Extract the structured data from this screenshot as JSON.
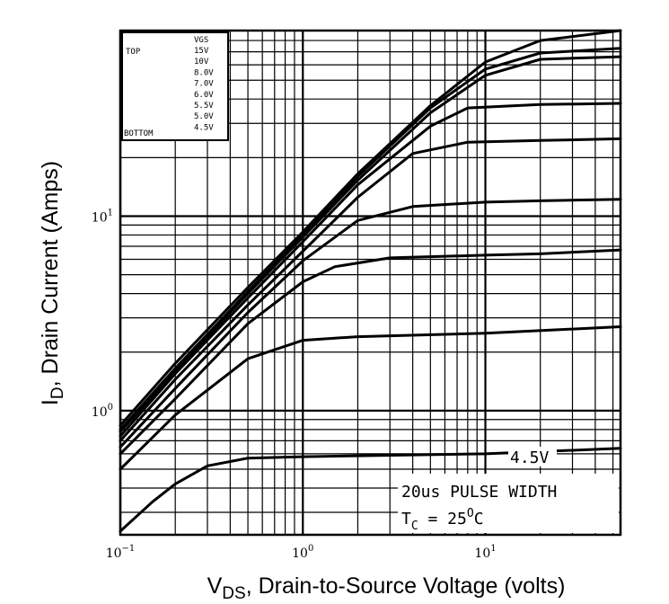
{
  "chart_data": {
    "type": "line",
    "scale": "log-log",
    "xlabel": {
      "prefix": "V",
      "sub": "DS",
      "rest": ", Drain-to-Source Voltage (volts)"
    },
    "ylabel": {
      "prefix": "I",
      "sub": "D",
      "rest": ", Drain Current (Amps)"
    },
    "xlim": [
      0.1,
      55
    ],
    "ylim": [
      0.23,
      90
    ],
    "grid": true,
    "x_ticks": [
      {
        "base": "10",
        "exp": "−1",
        "value": 0.1
      },
      {
        "base": "10",
        "exp": "0",
        "value": 1
      },
      {
        "base": "10",
        "exp": "1",
        "value": 10
      }
    ],
    "y_ticks": [
      {
        "base": "10",
        "exp": "0",
        "value": 1
      },
      {
        "base": "10",
        "exp": "1",
        "value": 10
      }
    ],
    "legend": {
      "placement": "top-left",
      "header": "VGS",
      "top_label": "TOP",
      "bottom_label": "BOTTOM",
      "entries": [
        "15V",
        "10V",
        "8.0V",
        "7.0V",
        "6.0V",
        "5.5V",
        "5.0V",
        "4.5V"
      ]
    },
    "curve_label": "4.5V",
    "annotation": {
      "line1": "20us PULSE WIDTH",
      "line2_prefix": "T",
      "line2_sub": "C",
      "line2_mid": " = 25",
      "line2_sup": "O",
      "line2_end": "C"
    },
    "series": [
      {
        "name": "15V",
        "x": [
          0.1,
          0.2,
          0.5,
          1,
          2,
          5,
          10,
          20,
          55
        ],
        "y": [
          0.84,
          1.75,
          4.3,
          8.3,
          16.5,
          37,
          62,
          80,
          90
        ]
      },
      {
        "name": "10V",
        "x": [
          0.1,
          0.2,
          0.5,
          1,
          2,
          5,
          10,
          20,
          55
        ],
        "y": [
          0.8,
          1.65,
          4.1,
          8.0,
          16,
          36,
          57,
          69,
          73
        ]
      },
      {
        "name": "8.0V",
        "x": [
          0.1,
          0.2,
          0.5,
          1,
          2,
          5,
          10,
          20,
          55
        ],
        "y": [
          0.78,
          1.6,
          4.0,
          7.8,
          15.3,
          34,
          53,
          64,
          66
        ]
      },
      {
        "name": "7.0V",
        "x": [
          0.1,
          0.2,
          0.5,
          1,
          2,
          5,
          8,
          20,
          55
        ],
        "y": [
          0.74,
          1.55,
          3.8,
          7.4,
          14.5,
          29,
          36,
          37.5,
          38
        ]
      },
      {
        "name": "6.0V",
        "x": [
          0.1,
          0.2,
          0.5,
          1,
          2,
          4,
          8,
          20,
          55
        ],
        "y": [
          0.7,
          1.45,
          3.5,
          6.6,
          12.5,
          21,
          24,
          24.5,
          25
        ]
      },
      {
        "name": "5.5V",
        "x": [
          0.1,
          0.2,
          0.5,
          1,
          2,
          4,
          10,
          20,
          55
        ],
        "y": [
          0.65,
          1.3,
          3.2,
          5.9,
          9.5,
          11.2,
          11.8,
          12,
          12.2
        ]
      },
      {
        "name": "5.0V",
        "x": [
          0.1,
          0.2,
          0.5,
          1,
          1.5,
          3,
          10,
          20,
          55
        ],
        "y": [
          0.6,
          1.15,
          2.8,
          4.6,
          5.5,
          6.1,
          6.3,
          6.4,
          6.7
        ]
      },
      {
        "name": "4.5V",
        "x": [
          0.1,
          0.2,
          0.5,
          1,
          2,
          10,
          55
        ],
        "y": [
          0.5,
          0.95,
          1.85,
          2.3,
          2.4,
          2.5,
          2.7
        ]
      },
      {
        "name": "",
        "x": [
          0.1,
          0.15,
          0.2,
          0.3,
          0.5,
          1,
          10,
          55
        ],
        "y": [
          0.24,
          0.34,
          0.42,
          0.52,
          0.57,
          0.58,
          0.6,
          0.64
        ]
      }
    ]
  },
  "style": {
    "line_color": "#000000",
    "background": "#ffffff"
  }
}
